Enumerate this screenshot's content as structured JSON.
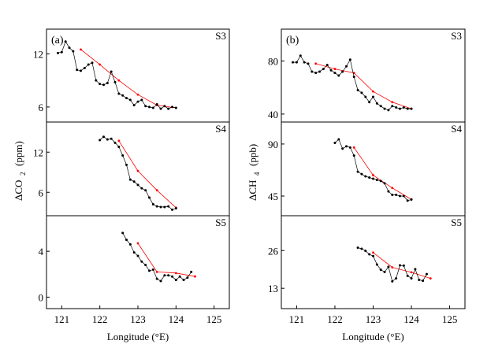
{
  "colors": {
    "measured": "#000000",
    "model": "#ff0000"
  },
  "chart_data": [
    {
      "type": "line",
      "label": "(a)",
      "ylabel_main": "ΔCO",
      "ylabel_sub": "2",
      "ylabel_unit": "(ppm)",
      "xlabel": "Longitude (°E)",
      "xlim": [
        120.6,
        125.4
      ],
      "xticks": [
        "121",
        "122",
        "123",
        "124",
        "125"
      ],
      "panels": [
        {
          "name": "S3",
          "ylim": [
            4.3,
            14.8
          ],
          "yticks": [
            6,
            12
          ],
          "measured": {
            "x": [
              120.9,
              121.0,
              121.1,
              121.2,
              121.3,
              121.4,
              121.5,
              121.6,
              121.7,
              121.8,
              121.9,
              122.0,
              122.1,
              122.2,
              122.3,
              122.4,
              122.5,
              122.6,
              122.7,
              122.8,
              122.9,
              123.0,
              123.1,
              123.2,
              123.3,
              123.4,
              123.5,
              123.6,
              123.7,
              123.8,
              123.9,
              124.0
            ],
            "values": [
              12.1,
              12.2,
              13.4,
              12.7,
              12.3,
              10.2,
              10.1,
              10.4,
              10.8,
              11.0,
              9.0,
              8.6,
              8.5,
              8.7,
              10.0,
              8.8,
              7.5,
              7.3,
              7.0,
              6.8,
              6.2,
              6.6,
              6.8,
              6.1,
              6.0,
              5.9,
              6.3,
              5.8,
              6.1,
              5.8,
              6.0,
              5.9
            ]
          },
          "model": {
            "x": [
              121.5,
              122.0,
              122.5,
              123.0,
              123.5,
              124.0
            ],
            "values": [
              12.5,
              10.8,
              9.0,
              7.4,
              6.2,
              5.9
            ]
          }
        },
        {
          "name": "S4",
          "ylim": [
            2.5,
            16.5
          ],
          "yticks": [
            6,
            12
          ],
          "measured": {
            "x": [
              122.0,
              122.1,
              122.2,
              122.3,
              122.4,
              122.5,
              122.6,
              122.7,
              122.8,
              122.9,
              123.0,
              123.1,
              123.2,
              123.3,
              123.4,
              123.5,
              123.6,
              123.7,
              123.8,
              123.9,
              124.0
            ],
            "values": [
              13.8,
              14.3,
              13.9,
              14.0,
              13.4,
              12.8,
              11.5,
              10.1,
              7.9,
              7.6,
              7.1,
              6.6,
              6.3,
              5.2,
              4.2,
              3.9,
              3.8,
              3.8,
              3.9,
              3.4,
              3.6
            ]
          },
          "model": {
            "x": [
              122.5,
              123.0,
              123.5,
              124.0
            ],
            "values": [
              13.7,
              9.2,
              6.3,
              3.7
            ]
          }
        },
        {
          "name": "S5",
          "ylim": [
            -1.0,
            7.1
          ],
          "yticks": [
            0,
            4
          ],
          "measured": {
            "x": [
              122.6,
              122.7,
              122.8,
              122.9,
              123.0,
              123.1,
              123.2,
              123.3,
              123.4,
              123.5,
              123.6,
              123.7,
              123.8,
              123.9,
              124.0,
              124.1,
              124.2,
              124.3,
              124.4
            ],
            "values": [
              5.6,
              5.0,
              4.6,
              3.9,
              3.6,
              3.1,
              2.8,
              2.3,
              2.4,
              1.6,
              1.4,
              1.9,
              1.9,
              1.8,
              1.5,
              1.8,
              1.5,
              1.7,
              2.2
            ]
          },
          "model": {
            "x": [
              123.0,
              123.5,
              124.0,
              124.5
            ],
            "values": [
              4.7,
              2.2,
              2.1,
              1.8
            ]
          }
        }
      ]
    },
    {
      "type": "line",
      "label": "(b)",
      "ylabel_main": "ΔCH",
      "ylabel_sub": "4",
      "ylabel_unit": "(ppb)",
      "xlabel": "Longitude (°E)",
      "xlim": [
        120.6,
        125.4
      ],
      "xticks": [
        "121",
        "122",
        "123",
        "124",
        "125"
      ],
      "panels": [
        {
          "name": "S3",
          "ylim": [
            34,
            104
          ],
          "yticks": [
            40,
            80
          ],
          "measured": {
            "x": [
              120.9,
              121.0,
              121.1,
              121.2,
              121.3,
              121.4,
              121.5,
              121.6,
              121.7,
              121.8,
              121.9,
              122.0,
              122.1,
              122.2,
              122.3,
              122.4,
              122.5,
              122.6,
              122.7,
              122.8,
              122.9,
              123.0,
              123.1,
              123.2,
              123.3,
              123.4,
              123.5,
              123.6,
              123.7,
              123.8,
              123.9,
              124.0
            ],
            "values": [
              79,
              79,
              84,
              79,
              78,
              72,
              71,
              72,
              74,
              77,
              73,
              71,
              69,
              72,
              76,
              81,
              68,
              58,
              56,
              53,
              49,
              53,
              48,
              46,
              44,
              43,
              46,
              45,
              44,
              45,
              44,
              44
            ]
          },
          "model": {
            "x": [
              121.5,
              122.0,
              122.5,
              123.0,
              123.5,
              124.0
            ],
            "values": [
              78,
              74,
              71,
              57,
              49,
              44
            ]
          }
        },
        {
          "name": "S4",
          "ylim": [
            28,
            109
          ],
          "yticks": [
            45,
            90
          ],
          "measured": {
            "x": [
              122.0,
              122.1,
              122.2,
              122.3,
              122.4,
              122.5,
              122.6,
              122.7,
              122.8,
              122.9,
              123.0,
              123.1,
              123.2,
              123.3,
              123.4,
              123.5,
              123.6,
              123.7,
              123.8,
              123.9,
              124.0
            ],
            "values": [
              91,
              94,
              86,
              88,
              87,
              80,
              66,
              64,
              62,
              61,
              60,
              59,
              58,
              56,
              49,
              46,
              46,
              45,
              45,
              41,
              42
            ]
          },
          "model": {
            "x": [
              122.5,
              123.0,
              123.5,
              124.0
            ],
            "values": [
              87,
              63,
              52,
              42
            ]
          }
        },
        {
          "name": "S5",
          "ylim": [
            6,
            38
          ],
          "yticks": [
            13,
            26
          ],
          "measured": {
            "x": [
              122.6,
              122.7,
              122.8,
              122.9,
              123.0,
              123.1,
              123.2,
              123.3,
              123.4,
              123.5,
              123.6,
              123.7,
              123.8,
              123.9,
              124.0,
              124.1,
              124.2,
              124.3,
              124.4
            ],
            "values": [
              27.0,
              26.6,
              25.9,
              24.7,
              24.1,
              21.2,
              19.4,
              18.6,
              20.4,
              15.4,
              16.4,
              20.9,
              20.8,
              17.3,
              16.4,
              19.6,
              15.9,
              15.6,
              17.9
            ]
          },
          "model": {
            "x": [
              123.0,
              123.5,
              124.0,
              124.5
            ],
            "values": [
              25.3,
              20.2,
              18.5,
              16.4
            ]
          }
        }
      ]
    }
  ]
}
